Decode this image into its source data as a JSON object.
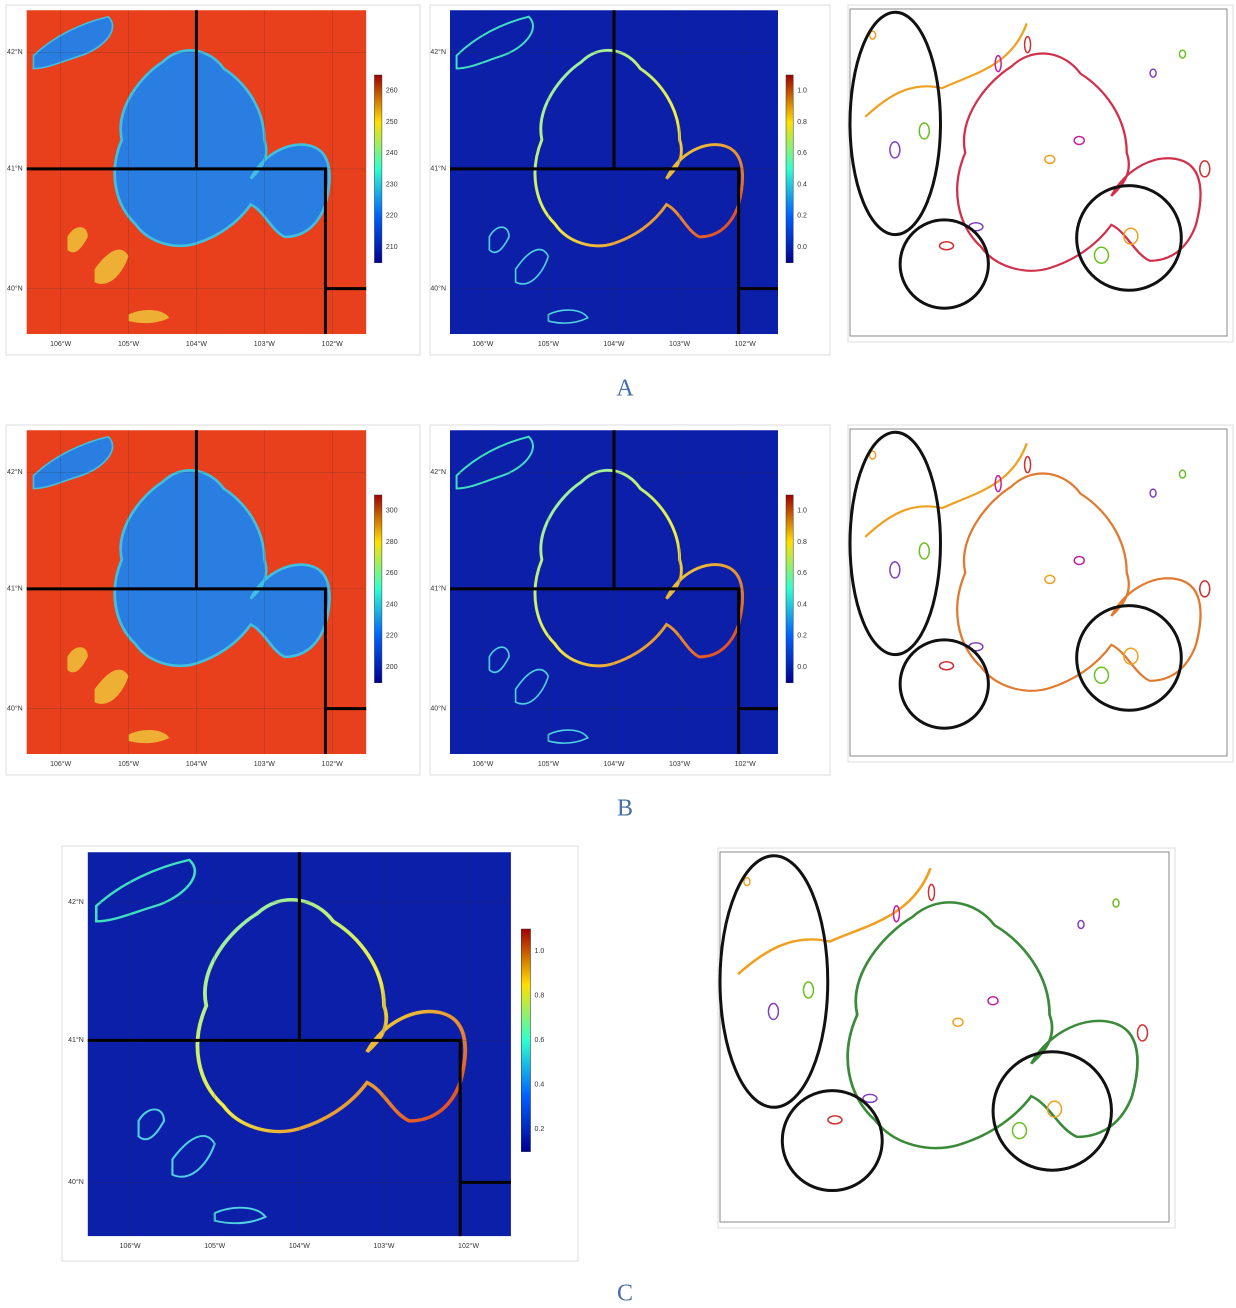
{
  "rows": [
    {
      "label": "A",
      "panels": [
        {
          "type": "temperature",
          "lat_labels": [
            "42°N",
            "41°N",
            "40°N"
          ],
          "lon_labels": [
            "106°W",
            "105°W",
            "104°W",
            "103°W",
            "102°W"
          ],
          "colorbar_ticks": [
            "260",
            "250",
            "240",
            "230",
            "220",
            "210"
          ]
        },
        {
          "type": "probability",
          "lat_labels": [
            "42°N",
            "41°N",
            "40°N"
          ],
          "lon_labels": [
            "106°W",
            "105°W",
            "104°W",
            "103°W",
            "102°W"
          ],
          "colorbar_ticks": [
            "1.0",
            "0.8",
            "0.6",
            "0.4",
            "0.2",
            "0.0"
          ]
        },
        {
          "type": "contours"
        }
      ]
    },
    {
      "label": "B",
      "panels": [
        {
          "type": "temperature",
          "lat_labels": [
            "42°N",
            "41°N",
            "40°N"
          ],
          "lon_labels": [
            "106°W",
            "105°W",
            "104°W",
            "103°W",
            "102°W"
          ],
          "colorbar_ticks": [
            "300",
            "280",
            "260",
            "240",
            "220",
            "200"
          ]
        },
        {
          "type": "probability",
          "lat_labels": [
            "42°N",
            "41°N",
            "40°N"
          ],
          "lon_labels": [
            "106°W",
            "105°W",
            "104°W",
            "103°W",
            "102°W"
          ],
          "colorbar_ticks": [
            "1.0",
            "0.8",
            "0.6",
            "0.4",
            "0.2",
            "0.0"
          ]
        },
        {
          "type": "contours"
        }
      ]
    },
    {
      "label": "C",
      "panels": [
        {
          "type": "probability",
          "lat_labels": [
            "42°N",
            "41°N",
            "40°N"
          ],
          "lon_labels": [
            "106°W",
            "105°W",
            "104°W",
            "103°W",
            "102°W"
          ],
          "colorbar_ticks": [
            "1.0",
            "0.8",
            "0.6",
            "0.4",
            "0.2"
          ]
        },
        {
          "type": "contours"
        }
      ]
    }
  ]
}
